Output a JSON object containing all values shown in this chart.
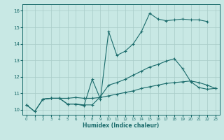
{
  "xlabel": "Humidex (Indice chaleur)",
  "xlim": [
    -0.5,
    23.5
  ],
  "ylim": [
    9.7,
    16.4
  ],
  "yticks": [
    10,
    11,
    12,
    13,
    14,
    15,
    16
  ],
  "xticks": [
    0,
    1,
    2,
    3,
    4,
    5,
    6,
    7,
    8,
    9,
    10,
    11,
    12,
    13,
    14,
    15,
    16,
    17,
    18,
    19,
    20,
    21,
    22,
    23
  ],
  "background_color": "#c8e8e4",
  "grid_color": "#a8ccc8",
  "line_color": "#1a6b6b",
  "line1_x": [
    0,
    1,
    2,
    3,
    4,
    5,
    6,
    7,
    8,
    9,
    10,
    11,
    12,
    13,
    14,
    15,
    16,
    17,
    18,
    19,
    20,
    21,
    22
  ],
  "line1_y": [
    10.3,
    9.9,
    10.65,
    10.7,
    10.7,
    10.35,
    10.35,
    10.25,
    11.85,
    10.65,
    14.75,
    13.3,
    13.55,
    14.0,
    14.75,
    15.85,
    15.5,
    15.4,
    15.45,
    15.5,
    15.45,
    15.45,
    15.35
  ],
  "line2_x": [
    0,
    1,
    2,
    3,
    4,
    5,
    6,
    7,
    8,
    9,
    10,
    11,
    12,
    13,
    14,
    15,
    16,
    17,
    18,
    19,
    20,
    21,
    22,
    23
  ],
  "line2_y": [
    10.3,
    9.9,
    10.65,
    10.7,
    10.7,
    10.35,
    10.35,
    10.3,
    10.3,
    10.8,
    11.5,
    11.65,
    11.85,
    12.1,
    12.35,
    12.6,
    12.75,
    12.95,
    13.1,
    12.5,
    11.7,
    11.35,
    11.25,
    11.3
  ],
  "line3_x": [
    2,
    3,
    4,
    5,
    6,
    7,
    8,
    9,
    10,
    11,
    12,
    13,
    14,
    15,
    16,
    17,
    18,
    19,
    20,
    21,
    22,
    23
  ],
  "line3_y": [
    10.65,
    10.7,
    10.7,
    10.7,
    10.75,
    10.7,
    10.7,
    10.75,
    10.85,
    10.95,
    11.05,
    11.15,
    11.3,
    11.4,
    11.5,
    11.6,
    11.65,
    11.7,
    11.75,
    11.65,
    11.5,
    11.3
  ]
}
